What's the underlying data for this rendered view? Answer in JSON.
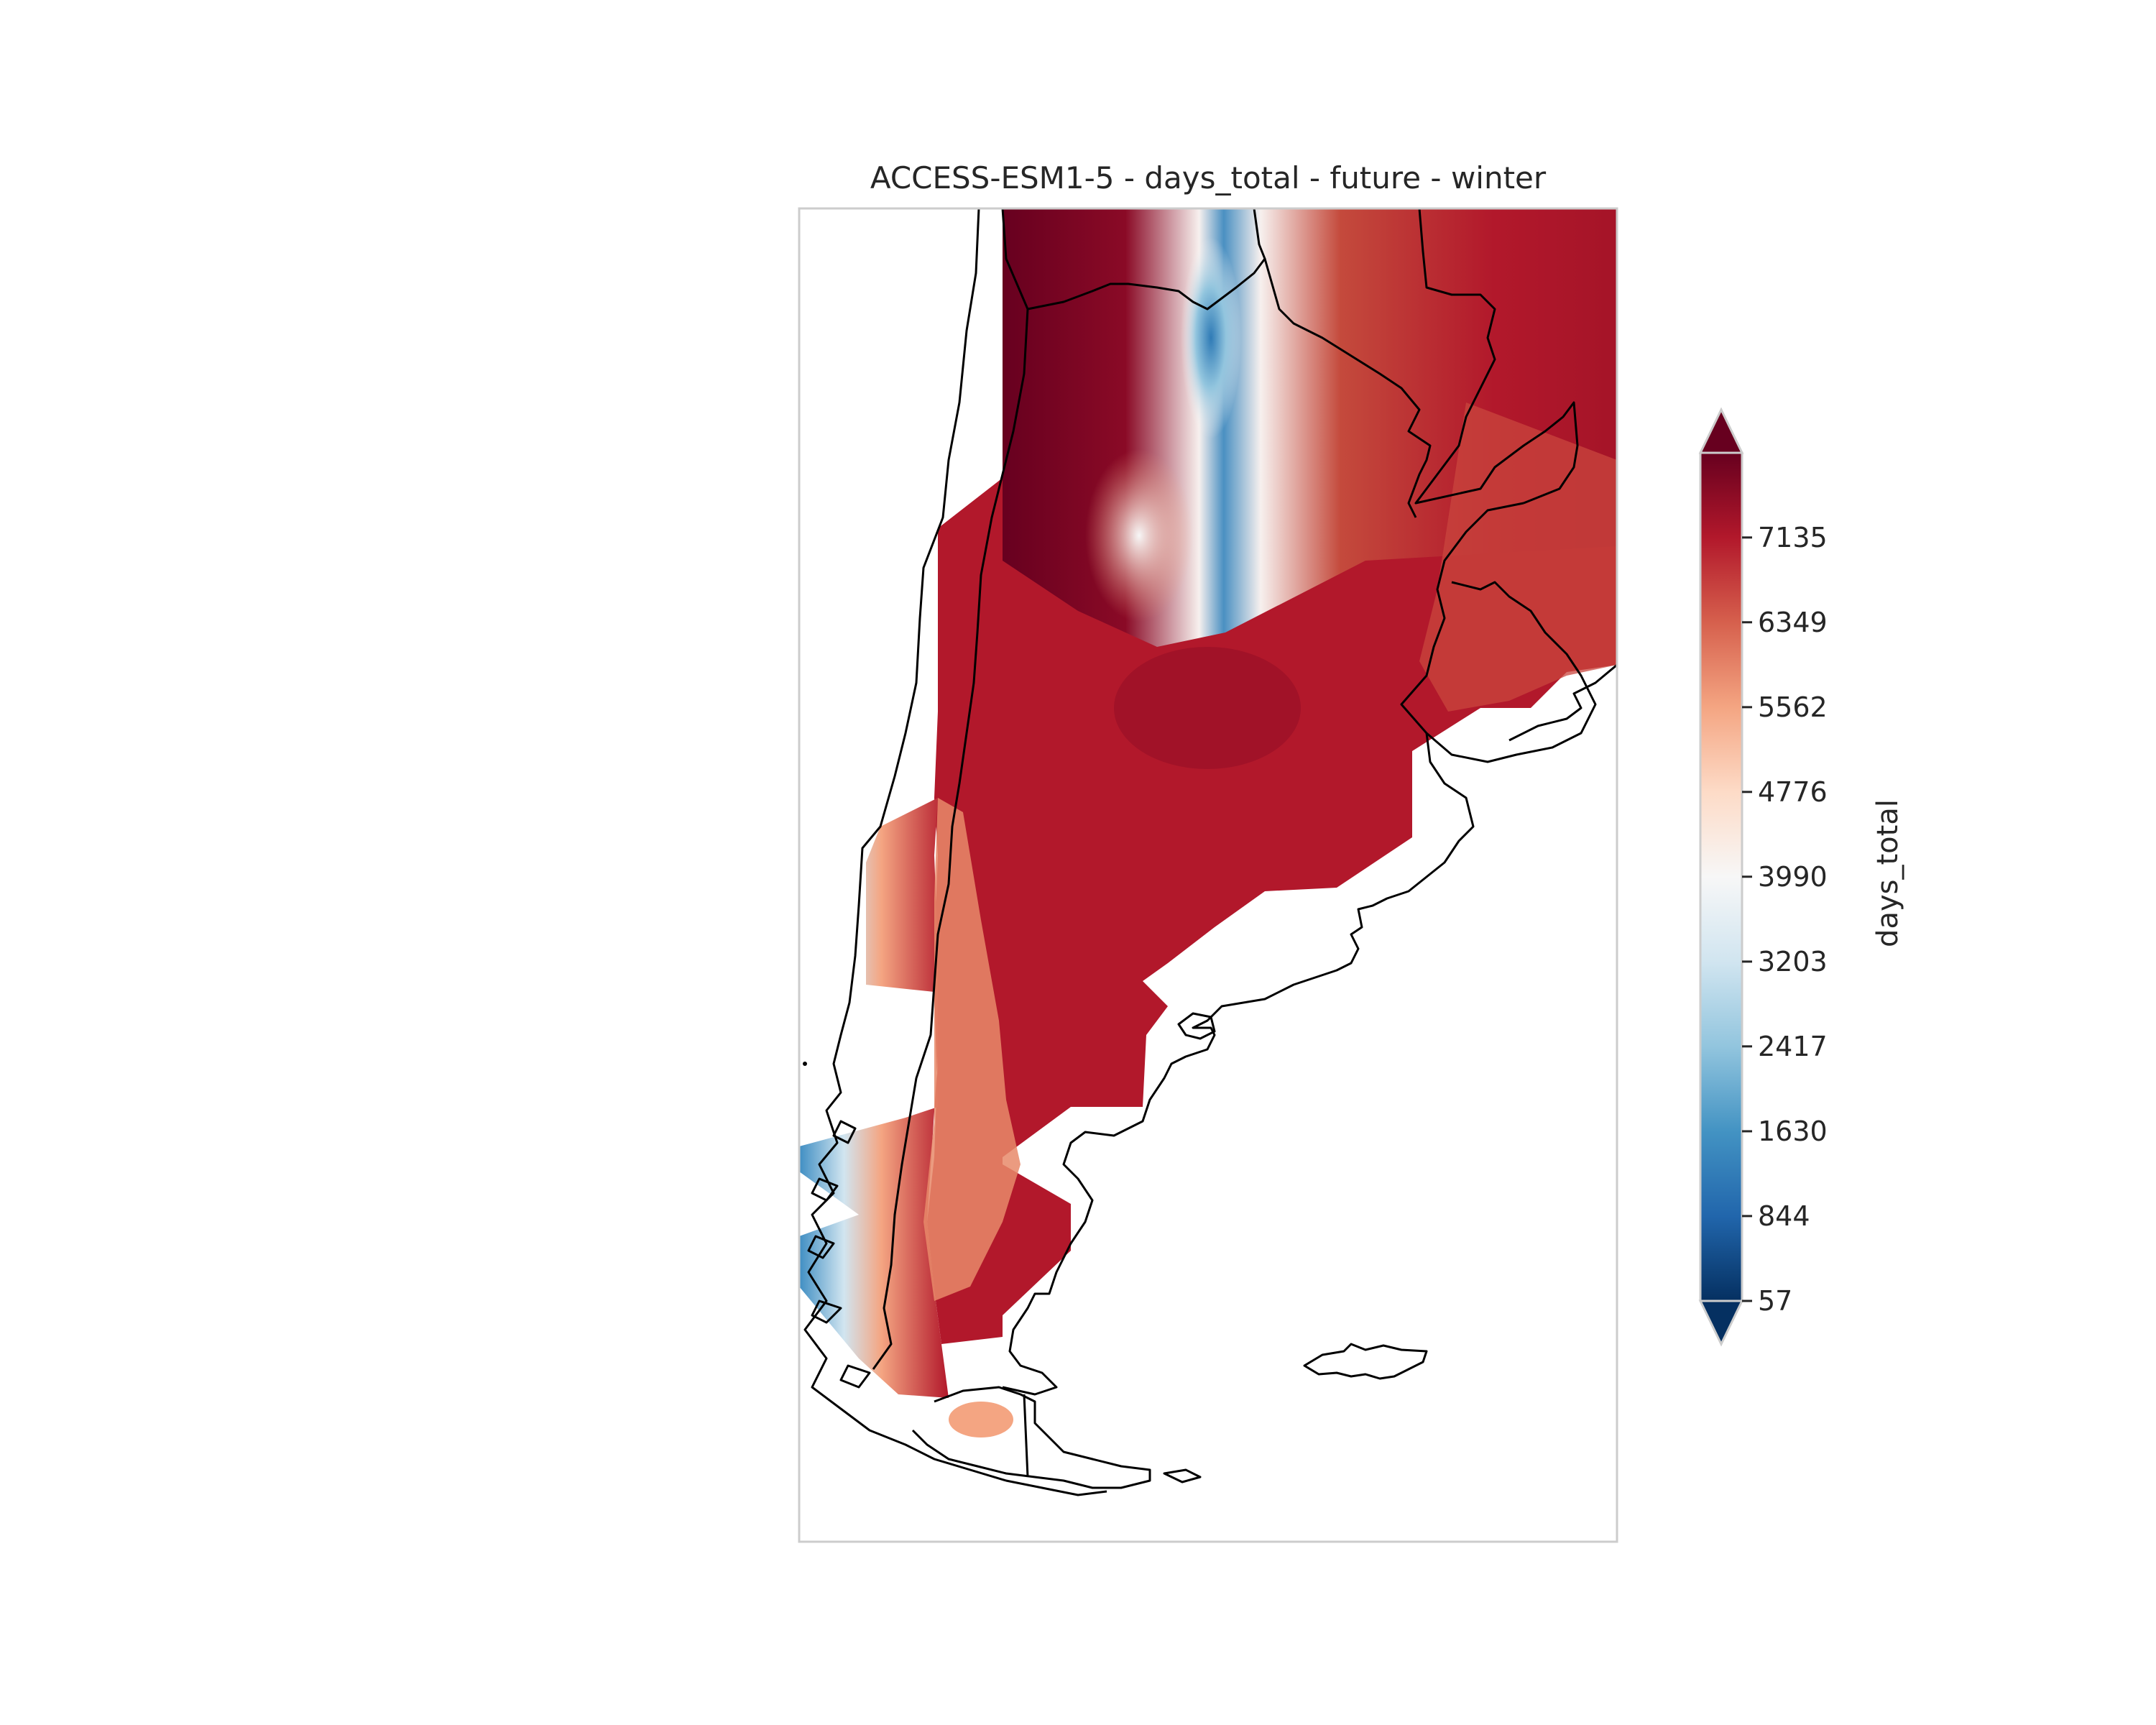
{
  "title": "ACCESS-ESM1-5 - days_total - future - winter",
  "colorbar": {
    "label": "days_total",
    "ticks": [
      "57",
      "844",
      "1630",
      "2417",
      "3203",
      "3990",
      "4776",
      "5562",
      "6349",
      "7135"
    ],
    "tick_values": [
      57,
      844,
      1630,
      2417,
      3203,
      3990,
      4776,
      5562,
      6349,
      7135
    ],
    "range": [
      57,
      7920
    ],
    "extend": "both",
    "colormap": "RdBu_r",
    "colors": [
      "#053061",
      "#2166ac",
      "#4393c3",
      "#92c5de",
      "#d1e5f0",
      "#f7f7f7",
      "#fddbc7",
      "#f4a582",
      "#d6604d",
      "#b2182b",
      "#67001f"
    ]
  },
  "map": {
    "region": "southern South America (Argentina, Chile)",
    "coastline_color": "#000000",
    "frame_color": "#cccccc"
  }
}
